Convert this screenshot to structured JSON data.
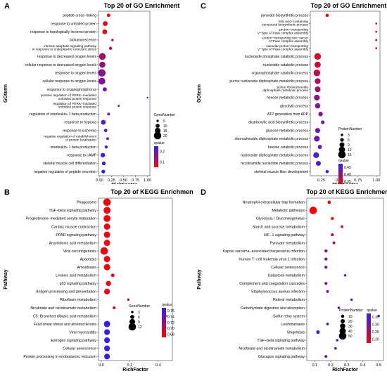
{
  "chart_data": [
    {
      "type": "scatter",
      "panel_label": "A",
      "title": "Top 20 of GO Enrichment",
      "xlabel": "RichFactor",
      "ylabel": "GOterm",
      "xticks": [
        "0.00",
        "0.25",
        "0.50",
        "0.75",
        "1.00"
      ],
      "xlim": [
        -0.02,
        1.05
      ],
      "size_legend_title": "GeneNumber",
      "size_legend": [
        5,
        10,
        15,
        20
      ],
      "size_range": [
        5,
        20
      ],
      "color_legend_title": "qvalue",
      "color_legend_ticks": [
        "0.2",
        "0.1"
      ],
      "color_range": [
        0.0,
        0.25
      ],
      "low_color": "#ff0000",
      "high_color": "#2b20ff",
      "categories": [
        "peptide cross−linking",
        "response to unfolded protein",
        "response to topologically incorrect protein",
        "bioluminescence",
        "intrinsic apoptotic signaling pathway\nin response to endoplasmic reticulum stress",
        "response to decreased oxygen levels",
        "cellular response to decreased oxygen levels",
        "response to oxygen levels",
        "cellular response to oxygen levels",
        "response to organophosphorus",
        "positive regulation of PERK−mediated\nunfolded protein response",
        "regulation of PERK−mediated\nunfolded protein response",
        "regulation of interleukin−1 beta production",
        "response to hypoxia",
        "response to ischemia",
        "negative regulation of establishment\nof protein localization",
        "interleukin−1 beta production",
        "response to cAMP",
        "skeletal muscle cell differentiation",
        "negative regulation of peptide secretion"
      ],
      "points": [
        {
          "x": 0.19,
          "size": 8,
          "q": 0.0
        },
        {
          "x": 0.12,
          "size": 12,
          "q": 0.02
        },
        {
          "x": 0.11,
          "size": 12,
          "q": 0.03
        },
        {
          "x": 0.27,
          "size": 5,
          "q": 0.06
        },
        {
          "x": 0.23,
          "size": 7,
          "q": 0.09
        },
        {
          "x": 0.06,
          "size": 18,
          "q": 0.1
        },
        {
          "x": 0.06,
          "size": 16,
          "q": 0.12
        },
        {
          "x": 0.05,
          "size": 20,
          "q": 0.14
        },
        {
          "x": 0.05,
          "size": 18,
          "q": 0.15
        },
        {
          "x": 0.11,
          "size": 10,
          "q": 0.16
        },
        {
          "x": 1.0,
          "size": 3,
          "q": 0.18
        },
        {
          "x": 0.4,
          "size": 4,
          "q": 0.18
        },
        {
          "x": 0.19,
          "size": 6,
          "q": 0.2
        },
        {
          "x": 0.08,
          "size": 12,
          "q": 0.2
        },
        {
          "x": 0.13,
          "size": 8,
          "q": 0.21
        },
        {
          "x": 0.17,
          "size": 6,
          "q": 0.22
        },
        {
          "x": 0.14,
          "size": 7,
          "q": 0.22
        },
        {
          "x": 0.07,
          "size": 11,
          "q": 0.23
        },
        {
          "x": 0.09,
          "size": 9,
          "q": 0.24
        },
        {
          "x": 0.08,
          "size": 9,
          "q": 0.24
        }
      ]
    },
    {
      "type": "scatter",
      "panel_label": "C",
      "title": "Top 20 of GO Enrichment",
      "xlabel": "RichFactor",
      "ylabel": "GOterm",
      "xticks": [
        "0.25",
        "0.50",
        "0.75",
        "1.00"
      ],
      "xlim": [
        0.1,
        1.05
      ],
      "size_legend_title": "ProteinNumber",
      "size_legend": [
        3,
        6,
        9,
        12,
        15
      ],
      "size_range": [
        3,
        15
      ],
      "color_legend_title": "qvalue",
      "color_legend_ticks": [
        "0.45",
        "0.40",
        "0.35"
      ],
      "color_range": [
        0.33,
        0.47
      ],
      "low_color": "#ff0000",
      "high_color": "#2b20ff",
      "categories": [
        "pyruvate biosynthetic process",
        "folic acid−containing\ncompound biosynthetic process",
        "proton−transporting\nV−type ATPase complex assembly",
        "proton−transporting two−sector\nATPase complex assembly",
        "vacuolar proton−transporting\nV−type ATPase complex assembly",
        "nucleoside phosphate catabolic process",
        "nucleotide catabolic process",
        "organophosphate catabolic process",
        "purine nucleoside diphosphate metabolic process",
        "purine ribonucleoside\ndiphosphate metabolic process",
        "hexose metabolic process",
        "glycolytic process",
        "ATP generation from ADP",
        "dicarboxylic acid biosynthetic process",
        "glucose metabolic process",
        "ribonucleoside diphosphate metabolic process",
        "hexose catabolic process",
        "nucleoside diphosphate metabolic process",
        "nicotinamide nucleotide metabolic process",
        "skeletal muscle fiber development"
      ],
      "points": [
        {
          "x": 0.33,
          "size": 5,
          "q": 0.33
        },
        {
          "x": 1.0,
          "size": 2,
          "q": 0.33
        },
        {
          "x": 1.0,
          "size": 2,
          "q": 0.34
        },
        {
          "x": 1.0,
          "size": 2,
          "q": 0.34
        },
        {
          "x": 1.0,
          "size": 2,
          "q": 0.34
        },
        {
          "x": 0.2,
          "size": 13,
          "q": 0.35
        },
        {
          "x": 0.2,
          "size": 12,
          "q": 0.36
        },
        {
          "x": 0.19,
          "size": 13,
          "q": 0.37
        },
        {
          "x": 0.2,
          "size": 11,
          "q": 0.38
        },
        {
          "x": 0.2,
          "size": 11,
          "q": 0.39
        },
        {
          "x": 0.19,
          "size": 11,
          "q": 0.4
        },
        {
          "x": 0.2,
          "size": 10,
          "q": 0.41
        },
        {
          "x": 0.24,
          "size": 8,
          "q": 0.41
        },
        {
          "x": 0.27,
          "size": 6,
          "q": 0.42
        },
        {
          "x": 0.2,
          "size": 9,
          "q": 0.43
        },
        {
          "x": 0.19,
          "size": 11,
          "q": 0.43
        },
        {
          "x": 0.23,
          "size": 7,
          "q": 0.44
        },
        {
          "x": 0.18,
          "size": 11,
          "q": 0.45
        },
        {
          "x": 0.21,
          "size": 9,
          "q": 0.45
        },
        {
          "x": 0.33,
          "size": 5,
          "q": 0.46
        }
      ]
    },
    {
      "type": "scatter",
      "panel_label": "B",
      "title": "Top 20 of KEGG Enrichment",
      "xlabel": "RichFactor",
      "ylabel": "Pathway",
      "xticks": [
        "0.0",
        "0.2",
        "0.4"
      ],
      "xlim": [
        -0.02,
        0.5
      ],
      "size_legend_title": "GeneNumber",
      "size_legend": [
        3,
        6,
        9,
        12
      ],
      "size_range": [
        3,
        12
      ],
      "color_legend_title": "qvalue",
      "color_legend_ticks": [
        "0.76",
        "0.74",
        "0.72",
        "0.70",
        "0.68"
      ],
      "color_range": [
        0.67,
        0.77
      ],
      "low_color": "#ff0000",
      "high_color": "#2b20ff",
      "categories": [
        "Phagosome",
        "TGF−beta signaling pathway",
        "Progesterone−mediated oocyte maturation",
        "Cardiac muscle contraction",
        "PPAR signaling pathway",
        "Arachidonic acid metabolism",
        "Viral carcinogenesis",
        "Apoptosis",
        "Amoebiasis",
        "Linoleic acid metabolism",
        "p53 signaling pathway",
        "Antigen processing and presentation",
        "Riboflavin metabolism",
        "Nicotinate and nicotinamide metabolism",
        "C5−Branched dibasic acid metabolism",
        "Fluid shear stress and atherosclerosis",
        "Viral myocarditis",
        "Estrogen signaling pathway",
        "Cellular senescence",
        "Protein processing in endoplasmic reticulum"
      ],
      "points": [
        {
          "x": 0.04,
          "size": 12,
          "q": 0.672
        },
        {
          "x": 0.04,
          "size": 11,
          "q": 0.672
        },
        {
          "x": 0.04,
          "size": 11,
          "q": 0.672
        },
        {
          "x": 0.04,
          "size": 10,
          "q": 0.673
        },
        {
          "x": 0.04,
          "size": 10,
          "q": 0.673
        },
        {
          "x": 0.04,
          "size": 10,
          "q": 0.674
        },
        {
          "x": 0.02,
          "size": 12,
          "q": 0.675
        },
        {
          "x": 0.04,
          "size": 10,
          "q": 0.676
        },
        {
          "x": 0.04,
          "size": 10,
          "q": 0.677
        },
        {
          "x": 0.08,
          "size": 5,
          "q": 0.678
        },
        {
          "x": 0.05,
          "size": 8,
          "q": 0.679
        },
        {
          "x": 0.04,
          "size": 9,
          "q": 0.68
        },
        {
          "x": 0.19,
          "size": 3,
          "q": 0.682
        },
        {
          "x": 0.09,
          "size": 4,
          "q": 0.684
        },
        {
          "x": 0.46,
          "size": 1,
          "q": 0.76
        },
        {
          "x": 0.04,
          "size": 10,
          "q": 0.765
        },
        {
          "x": 0.04,
          "size": 9,
          "q": 0.765
        },
        {
          "x": 0.04,
          "size": 9,
          "q": 0.766
        },
        {
          "x": 0.04,
          "size": 9,
          "q": 0.766
        },
        {
          "x": 0.04,
          "size": 9,
          "q": 0.766
        }
      ]
    },
    {
      "type": "scatter",
      "panel_label": "D",
      "title": "Top 20 of KEGG Enrichment",
      "xlabel": "RichFactor",
      "ylabel": "Pathway",
      "xticks": [
        "0.1",
        "0.2",
        "0.3",
        "0.4",
        "0.5"
      ],
      "xlim": [
        0.05,
        0.53
      ],
      "size_legend_title": "ProteinNumber",
      "size_legend": [
        10,
        20,
        30,
        40,
        50
      ],
      "size_range": [
        3,
        50
      ],
      "color_legend_title": "qvalue",
      "color_legend_ticks": [
        "0.35",
        "0.30",
        "0.25",
        "0.20"
      ],
      "color_range": [
        0.18,
        0.37
      ],
      "low_color": "#ff0000",
      "high_color": "#2b20ff",
      "categories": [
        "Neutrophil extracellular trap formation",
        "Metabolic pathways",
        "Glycolysis / Gluconeogenesis",
        "Starch and sucrose metabolism",
        "HIF−1 signaling pathway",
        "Pyruvate metabolism",
        "Kaposi sarcoma−associated herpesvirus infection",
        "Human T−cell leukemia virus 1 infection",
        "Cellular senescence",
        "Galactose metabolism",
        "Complement and coagulation cascades",
        "Staphylococcus aureus infection",
        "Retinol metabolism",
        "Carbohydrate digestion and absorption",
        "Sulfur relay system",
        "Leishmaniasis",
        "Shigellosis",
        "TGF−beta signaling pathway",
        "Nicotinate and nicotinamide metabolism",
        "Glucagon signaling pathway"
      ],
      "points": [
        {
          "x": 0.19,
          "size": 12,
          "q": 0.18
        },
        {
          "x": 0.09,
          "size": 50,
          "q": 0.18
        },
        {
          "x": 0.21,
          "size": 9,
          "q": 0.19
        },
        {
          "x": 0.27,
          "size": 6,
          "q": 0.22
        },
        {
          "x": 0.21,
          "size": 8,
          "q": 0.23
        },
        {
          "x": 0.22,
          "size": 7,
          "q": 0.25
        },
        {
          "x": 0.17,
          "size": 10,
          "q": 0.27
        },
        {
          "x": 0.17,
          "size": 9,
          "q": 0.28
        },
        {
          "x": 0.17,
          "size": 9,
          "q": 0.29
        },
        {
          "x": 0.29,
          "size": 4,
          "q": 0.3
        },
        {
          "x": 0.17,
          "size": 8,
          "q": 0.31
        },
        {
          "x": 0.18,
          "size": 7,
          "q": 0.31
        },
        {
          "x": 0.33,
          "size": 4,
          "q": 0.33
        },
        {
          "x": 0.25,
          "size": 4,
          "q": 0.33
        },
        {
          "x": 0.5,
          "size": 3,
          "q": 0.34
        },
        {
          "x": 0.18,
          "size": 6,
          "q": 0.34
        },
        {
          "x": 0.12,
          "size": 14,
          "q": 0.35
        },
        {
          "x": 0.24,
          "size": 4,
          "q": 0.35
        },
        {
          "x": 0.23,
          "size": 5,
          "q": 0.36
        },
        {
          "x": 0.17,
          "size": 7,
          "q": 0.36
        }
      ]
    }
  ]
}
